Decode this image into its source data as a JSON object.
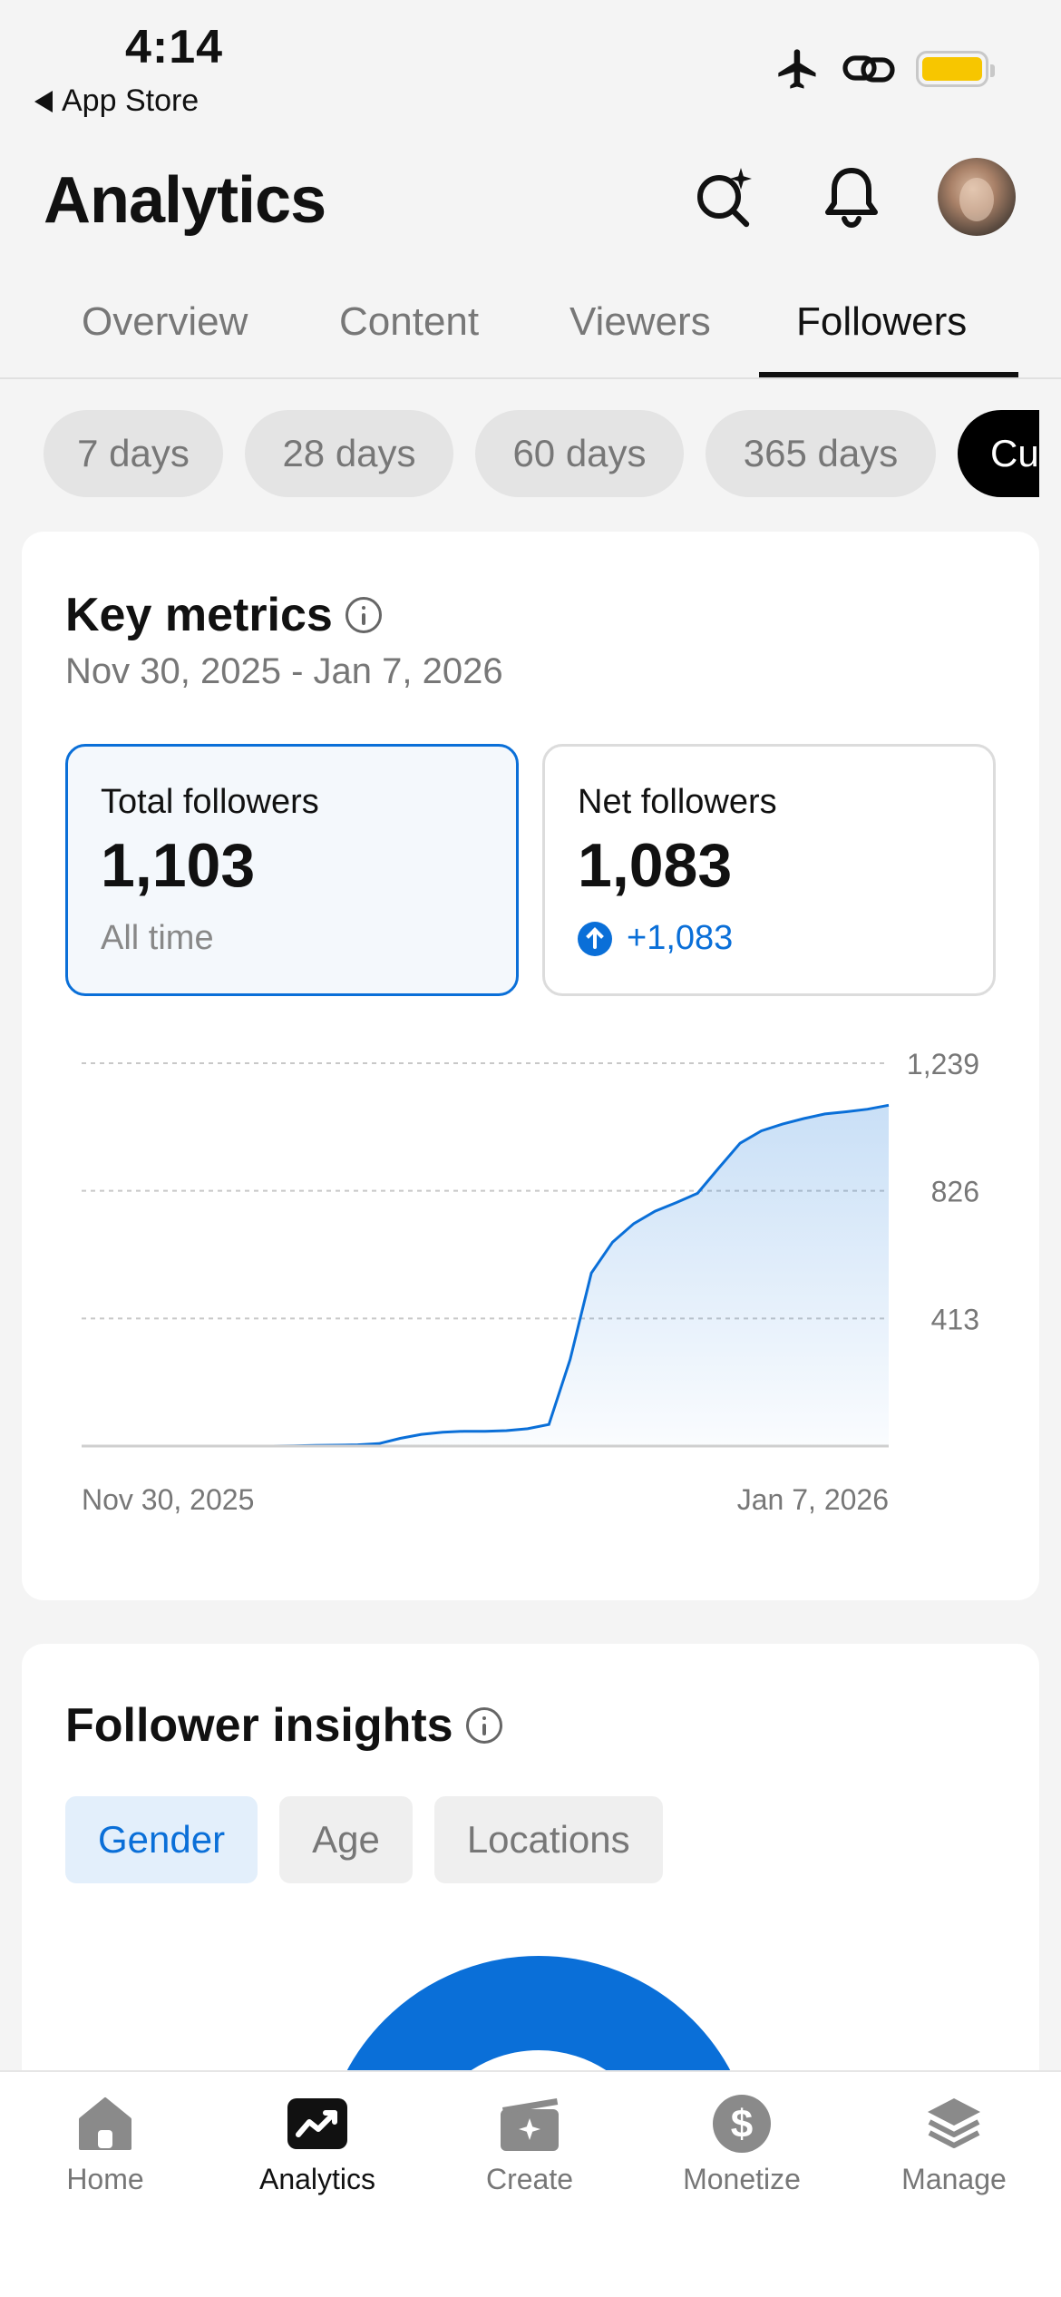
{
  "status_bar": {
    "time": "4:14",
    "back_label": "App Store",
    "battery_color": "#f7c600"
  },
  "header": {
    "title": "Analytics",
    "icons": [
      "ai-search-icon",
      "bell-icon",
      "avatar"
    ]
  },
  "tabs": [
    {
      "label": "Overview",
      "active": false
    },
    {
      "label": "Content",
      "active": false
    },
    {
      "label": "Viewers",
      "active": false
    },
    {
      "label": "Followers",
      "active": true
    }
  ],
  "periods": [
    {
      "label": "7 days",
      "active": false
    },
    {
      "label": "28 days",
      "active": false
    },
    {
      "label": "60 days",
      "active": false
    },
    {
      "label": "365 days",
      "active": false
    },
    {
      "label": "Cu",
      "active": true
    }
  ],
  "key_metrics": {
    "title": "Key metrics",
    "date_range": "Nov 30, 2025 - Jan 7, 2026",
    "total": {
      "label": "Total followers",
      "value": "1,103",
      "sub": "All time"
    },
    "net": {
      "label": "Net followers",
      "value": "1,083",
      "change": "+1,083"
    }
  },
  "chart_data": {
    "type": "area",
    "x_start_label": "Nov 30, 2025",
    "x_end_label": "Jan 7, 2026",
    "y_ticks": [
      "1,239",
      "826",
      "413"
    ],
    "ylim": [
      0,
      1239
    ],
    "x": [
      "2025-12-09",
      "2025-12-10",
      "2025-12-11",
      "2025-12-12",
      "2025-12-13",
      "2025-12-14",
      "2025-12-15",
      "2025-12-16",
      "2025-12-17",
      "2025-12-18",
      "2025-12-19",
      "2025-12-20",
      "2025-12-21",
      "2025-12-22",
      "2025-12-23",
      "2025-12-24",
      "2025-12-25",
      "2025-12-26",
      "2025-12-27",
      "2025-12-28",
      "2025-12-29",
      "2025-12-30",
      "2025-12-31",
      "2026-01-01",
      "2026-01-02",
      "2026-01-03",
      "2026-01-04",
      "2026-01-05",
      "2026-01-06",
      "2026-01-07"
    ],
    "values": [
      0,
      1,
      2,
      3,
      4,
      8,
      25,
      38,
      45,
      48,
      48,
      50,
      56,
      70,
      280,
      560,
      660,
      720,
      760,
      788,
      818,
      900,
      980,
      1020,
      1042,
      1060,
      1075,
      1082,
      1090,
      1103
    ],
    "grid": true,
    "line_color": "#0a6fd8"
  },
  "follower_insights": {
    "title": "Follower insights",
    "tabs": [
      {
        "label": "Gender",
        "active": true
      },
      {
        "label": "Age",
        "active": false
      },
      {
        "label": "Locations",
        "active": false
      }
    ],
    "donut_color": "#0a6fd8"
  },
  "bottom_nav": [
    {
      "label": "Home",
      "icon": "home-icon",
      "active": false
    },
    {
      "label": "Analytics",
      "icon": "analytics-icon",
      "active": true
    },
    {
      "label": "Create",
      "icon": "create-icon",
      "active": false
    },
    {
      "label": "Monetize",
      "icon": "dollar-icon",
      "active": false
    },
    {
      "label": "Manage",
      "icon": "layers-icon",
      "active": false
    }
  ]
}
